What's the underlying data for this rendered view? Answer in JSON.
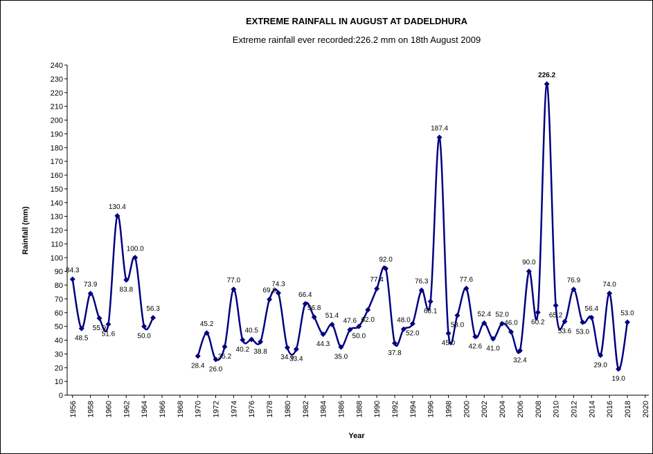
{
  "chart_data": {
    "type": "line",
    "title": "EXTREME RAINFALL  IN AUGUST  AT DADELDHURA",
    "subtitle": "Extreme rainfall ever recorded:226.2 mm on 18th August 2009",
    "x_label": "Year",
    "y_label": "Rainfall (mm)",
    "x": [
      1956,
      1957,
      1958,
      1959,
      1960,
      1961,
      1962,
      1963,
      1964,
      1965,
      1966,
      1967,
      1968,
      1969,
      1970,
      1971,
      1972,
      1973,
      1974,
      1975,
      1976,
      1977,
      1978,
      1979,
      1980,
      1981,
      1982,
      1983,
      1984,
      1985,
      1986,
      1987,
      1988,
      1989,
      1990,
      1991,
      1992,
      1993,
      1994,
      1995,
      1996,
      1997,
      1998,
      1999,
      2000,
      2001,
      2002,
      2003,
      2004,
      2005,
      2006,
      2007,
      2008,
      2009,
      2010,
      2011,
      2012,
      2013,
      2014,
      2015,
      2016,
      2017,
      2018
    ],
    "values": [
      84.3,
      48.5,
      73.9,
      55.9,
      51.6,
      130.4,
      83.8,
      100,
      50,
      56.3,
      null,
      null,
      null,
      null,
      28.4,
      45.2,
      26,
      35.2,
      77,
      40.2,
      40.5,
      38.8,
      69.6,
      74.3,
      34.6,
      33.4,
      66.4,
      56.8,
      44.3,
      51.4,
      35,
      47.6,
      50,
      62,
      77.4,
      92,
      37.8,
      48,
      52,
      76.3,
      68.1,
      187.4,
      45,
      58,
      77.6,
      42.6,
      52.4,
      41,
      52,
      46,
      32.4,
      90,
      60.2,
      226.2,
      65.2,
      53.6,
      76.9,
      53,
      56.4,
      29,
      74,
      19,
      53
    ],
    "value_labels": [
      "84.3",
      "48.5",
      "73.9",
      "55.9",
      "51.6",
      "130.4",
      "83.8",
      "100.0",
      "50.0",
      "56.3",
      null,
      null,
      null,
      null,
      "28.4",
      "45.2",
      "26.0",
      "35.2",
      "77.0",
      "40.2",
      "40.5",
      "38.8",
      "69.6",
      "74.3",
      "34.6",
      "33.4",
      "66.4",
      "56.8",
      "44.3",
      "51.4",
      "35.0",
      "47.6",
      "50.0",
      "62.0",
      "77.4",
      "92.0",
      "37.8",
      "48.0",
      "52.0",
      "76.3",
      "68.1",
      "187.4",
      "45.0",
      "58.0",
      "77.6",
      "42.6",
      "52.4",
      "41.0",
      "52.0",
      "46.0",
      "32.4",
      "90.0",
      "60.2",
      "226.2",
      "65.2",
      "53.6",
      "76.9",
      "53.0",
      "56.4",
      "29.0",
      "74.0",
      "19.0",
      "53.0"
    ],
    "color": "#000080",
    "xlim": [
      1955.4,
      2020.4
    ],
    "xticks": [
      1956,
      1958,
      1960,
      1962,
      1964,
      1966,
      1968,
      1970,
      1972,
      1974,
      1976,
      1978,
      1980,
      1982,
      1984,
      1986,
      1988,
      1990,
      1992,
      1994,
      1996,
      1998,
      2000,
      2002,
      2004,
      2006,
      2008,
      2010,
      2012,
      2014,
      2016,
      2018,
      2020
    ],
    "ylim": [
      0,
      240
    ],
    "yticks": [
      0,
      10,
      20,
      30,
      40,
      50,
      60,
      70,
      80,
      90,
      100,
      110,
      120,
      130,
      140,
      150,
      160,
      170,
      180,
      190,
      200,
      210,
      220,
      230,
      240
    ]
  }
}
